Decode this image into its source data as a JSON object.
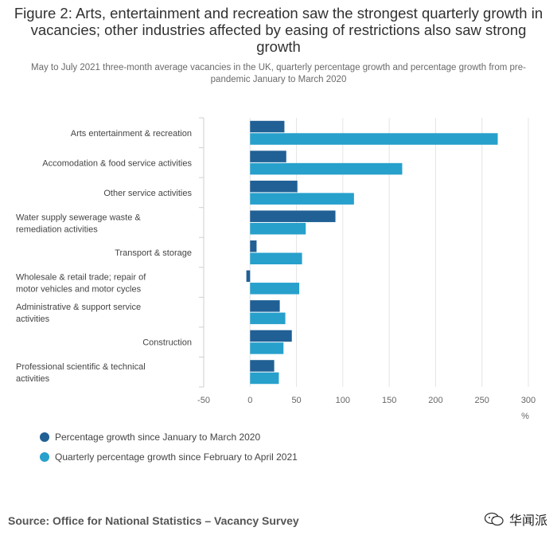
{
  "title": "Figure 2: Arts, entertainment and recreation saw the strongest quarterly growth in vacancies; other industries affected by easing of restrictions also saw strong growth",
  "subtitle": "May to July 2021 three-month average vacancies in the UK, quarterly percentage growth and percentage growth from pre-pandemic January to March 2020",
  "source": "Source: Office for National Statistics – Vacancy Survey",
  "watermark": "华闻派",
  "colors": {
    "series_pre_pandemic": "#206095",
    "series_quarterly": "#27A0CC"
  },
  "chart_data": {
    "type": "bar",
    "orientation": "horizontal",
    "categories": [
      "Arts entertainment & recreation",
      "Accomodation & food service activities",
      "Other service activities",
      "Water supply sewerage waste & remediation activities",
      "Transport & storage",
      "Wholesale & retail trade; repair of motor vehicles and motor cycles",
      "Administrative & support service activities",
      "Construction",
      "Professional scientific & technical activities"
    ],
    "series": [
      {
        "name": "Percentage growth since January to March 2020",
        "values": [
          37,
          39,
          51,
          92,
          7,
          -4,
          32,
          45,
          26
        ]
      },
      {
        "name": "Quarterly percentage growth since February to April 2021",
        "values": [
          267,
          164,
          112,
          60,
          56,
          53,
          38,
          36,
          31
        ]
      }
    ],
    "xlim": [
      -50,
      300
    ],
    "xticks": [
      -50,
      0,
      50,
      100,
      150,
      200,
      250,
      300
    ],
    "xlabel": "%",
    "ylabel": "",
    "grid": true,
    "legend_position": "bottom-left"
  }
}
